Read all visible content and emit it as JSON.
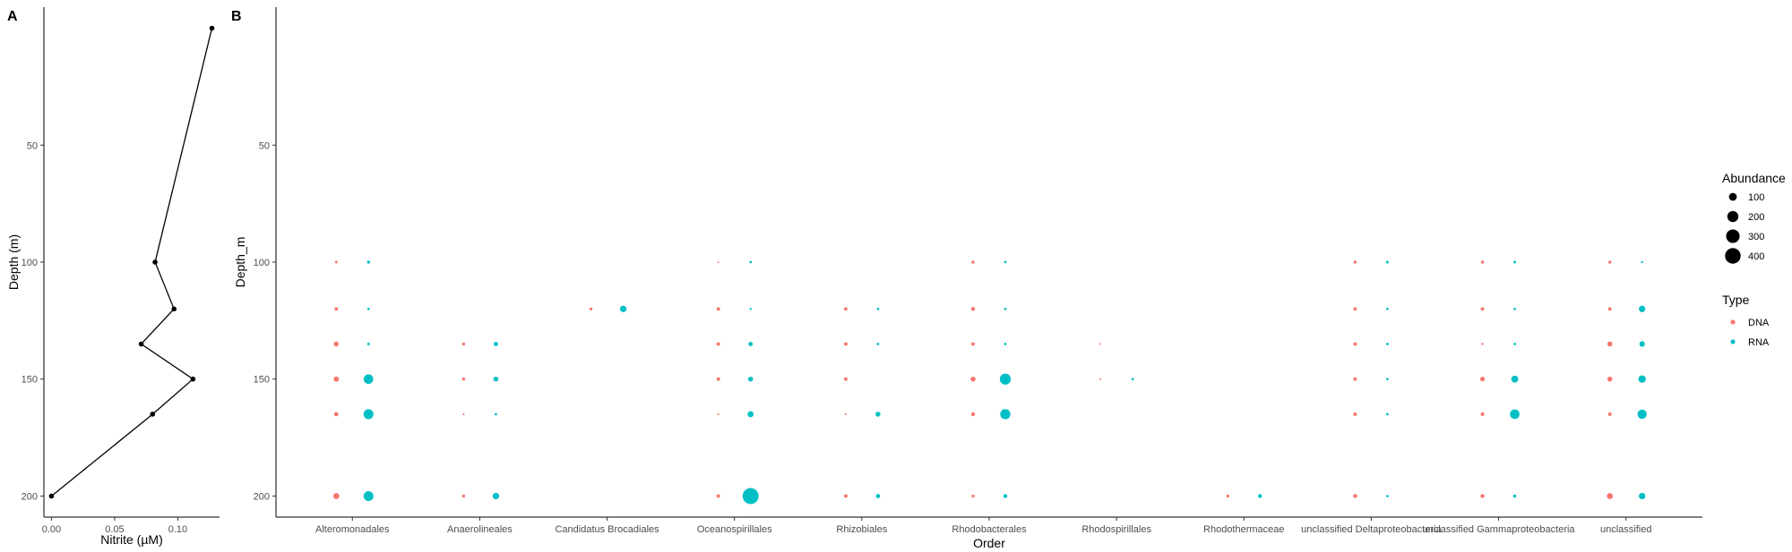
{
  "chart_data": [
    {
      "panel": "A",
      "type": "line",
      "xlabel": "Nitrite (µM)",
      "ylabel": "Depth (m)",
      "xlim": [
        -0.006,
        0.133
      ],
      "ylim": [
        209,
        -9
      ],
      "xticks": [
        0.0,
        0.05,
        0.1
      ],
      "xtick_labels": [
        "0.00",
        "0.05",
        "0.10"
      ],
      "yticks": [
        50,
        100,
        150,
        200
      ],
      "ytick_labels": [
        "50",
        "100",
        "150",
        "200"
      ],
      "grid": false,
      "points": [
        {
          "x": 0.127,
          "y": 0
        },
        {
          "x": 0.082,
          "y": 100
        },
        {
          "x": 0.097,
          "y": 120
        },
        {
          "x": 0.071,
          "y": 135
        },
        {
          "x": 0.112,
          "y": 150
        },
        {
          "x": 0.08,
          "y": 165
        },
        {
          "x": 0.0,
          "y": 200
        }
      ],
      "color": "#000000"
    },
    {
      "panel": "B",
      "type": "scatter",
      "xlabel": "Order",
      "ylabel": "Depth_m",
      "ylim": [
        209,
        -9
      ],
      "yticks": [
        50,
        100,
        150,
        200
      ],
      "ytick_labels": [
        "50",
        "100",
        "150",
        "200"
      ],
      "grid": false,
      "categories": [
        "Alteromonadales",
        "Anaerolineales",
        "Candidatus Brocadiales",
        "Oceanospirillales",
        "Rhizobiales",
        "Rhodobacterales",
        "Rhodospirillales",
        "Rhodothermaceae",
        "unclassified Deltaproteobacteria",
        "unclassified Gammaproteobacteria",
        "unclassified"
      ],
      "series": [
        {
          "name": "DNA",
          "color": "#F8766D",
          "points": [
            {
              "order": "Alteromonadales",
              "depth": 100,
              "abundance": 12
            },
            {
              "order": "Alteromonadales",
              "depth": 120,
              "abundance": 20
            },
            {
              "order": "Alteromonadales",
              "depth": 135,
              "abundance": 40
            },
            {
              "order": "Alteromonadales",
              "depth": 150,
              "abundance": 45
            },
            {
              "order": "Alteromonadales",
              "depth": 165,
              "abundance": 30
            },
            {
              "order": "Alteromonadales",
              "depth": 200,
              "abundance": 60
            },
            {
              "order": "Anaerolineales",
              "depth": 135,
              "abundance": 15
            },
            {
              "order": "Anaerolineales",
              "depth": 150,
              "abundance": 15
            },
            {
              "order": "Anaerolineales",
              "depth": 165,
              "abundance": 6
            },
            {
              "order": "Anaerolineales",
              "depth": 200,
              "abundance": 15
            },
            {
              "order": "Candidatus Brocadiales",
              "depth": 120,
              "abundance": 15
            },
            {
              "order": "Oceanospirillales",
              "depth": 100,
              "abundance": 5
            },
            {
              "order": "Oceanospirillales",
              "depth": 120,
              "abundance": 20
            },
            {
              "order": "Oceanospirillales",
              "depth": 135,
              "abundance": 20
            },
            {
              "order": "Oceanospirillales",
              "depth": 150,
              "abundance": 20
            },
            {
              "order": "Oceanospirillales",
              "depth": 165,
              "abundance": 6
            },
            {
              "order": "Oceanospirillales",
              "depth": 200,
              "abundance": 20
            },
            {
              "order": "Rhizobiales",
              "depth": 120,
              "abundance": 20
            },
            {
              "order": "Rhizobiales",
              "depth": 135,
              "abundance": 20
            },
            {
              "order": "Rhizobiales",
              "depth": 150,
              "abundance": 20
            },
            {
              "order": "Rhizobiales",
              "depth": 165,
              "abundance": 6
            },
            {
              "order": "Rhizobiales",
              "depth": 200,
              "abundance": 20
            },
            {
              "order": "Rhodobacterales",
              "depth": 100,
              "abundance": 15
            },
            {
              "order": "Rhodobacterales",
              "depth": 120,
              "abundance": 25
            },
            {
              "order": "Rhodobacterales",
              "depth": 135,
              "abundance": 20
            },
            {
              "order": "Rhodobacterales",
              "depth": 150,
              "abundance": 40
            },
            {
              "order": "Rhodobacterales",
              "depth": 165,
              "abundance": 25
            },
            {
              "order": "Rhodobacterales",
              "depth": 200,
              "abundance": 15
            },
            {
              "order": "Rhodospirillales",
              "depth": 135,
              "abundance": 5
            },
            {
              "order": "Rhodospirillales",
              "depth": 150,
              "abundance": 6
            },
            {
              "order": "Rhodothermaceae",
              "depth": 200,
              "abundance": 15
            },
            {
              "order": "unclassified Deltaproteobacteria",
              "depth": 100,
              "abundance": 15
            },
            {
              "order": "unclassified Deltaproteobacteria",
              "depth": 120,
              "abundance": 20
            },
            {
              "order": "unclassified Deltaproteobacteria",
              "depth": 135,
              "abundance": 20
            },
            {
              "order": "unclassified Deltaproteobacteria",
              "depth": 150,
              "abundance": 20
            },
            {
              "order": "unclassified Deltaproteobacteria",
              "depth": 165,
              "abundance": 20
            },
            {
              "order": "unclassified Deltaproteobacteria",
              "depth": 200,
              "abundance": 25
            },
            {
              "order": "unclassified Gammaproteobacteria",
              "depth": 100,
              "abundance": 15
            },
            {
              "order": "unclassified Gammaproteobacteria",
              "depth": 120,
              "abundance": 20
            },
            {
              "order": "unclassified Gammaproteobacteria",
              "depth": 135,
              "abundance": 8
            },
            {
              "order": "unclassified Gammaproteobacteria",
              "depth": 150,
              "abundance": 35
            },
            {
              "order": "unclassified Gammaproteobacteria",
              "depth": 165,
              "abundance": 20
            },
            {
              "order": "unclassified Gammaproteobacteria",
              "depth": 200,
              "abundance": 25
            },
            {
              "order": "unclassified",
              "depth": 100,
              "abundance": 15
            },
            {
              "order": "unclassified",
              "depth": 120,
              "abundance": 20
            },
            {
              "order": "unclassified",
              "depth": 135,
              "abundance": 40
            },
            {
              "order": "unclassified",
              "depth": 150,
              "abundance": 40
            },
            {
              "order": "unclassified",
              "depth": 165,
              "abundance": 20
            },
            {
              "order": "unclassified",
              "depth": 200,
              "abundance": 60
            }
          ]
        },
        {
          "name": "RNA",
          "color": "#00BFC4",
          "points": [
            {
              "order": "Alteromonadales",
              "depth": 100,
              "abundance": 15
            },
            {
              "order": "Alteromonadales",
              "depth": 120,
              "abundance": 10
            },
            {
              "order": "Alteromonadales",
              "depth": 135,
              "abundance": 12
            },
            {
              "order": "Alteromonadales",
              "depth": 150,
              "abundance": 150
            },
            {
              "order": "Alteromonadales",
              "depth": 165,
              "abundance": 160
            },
            {
              "order": "Alteromonadales",
              "depth": 200,
              "abundance": 160
            },
            {
              "order": "Anaerolineales",
              "depth": 135,
              "abundance": 30
            },
            {
              "order": "Anaerolineales",
              "depth": 150,
              "abundance": 40
            },
            {
              "order": "Anaerolineales",
              "depth": 165,
              "abundance": 10
            },
            {
              "order": "Anaerolineales",
              "depth": 200,
              "abundance": 70
            },
            {
              "order": "Candidatus Brocadiales",
              "depth": 120,
              "abundance": 70
            },
            {
              "order": "Oceanospirillales",
              "depth": 100,
              "abundance": 10
            },
            {
              "order": "Oceanospirillales",
              "depth": 120,
              "abundance": 8
            },
            {
              "order": "Oceanospirillales",
              "depth": 135,
              "abundance": 30
            },
            {
              "order": "Oceanospirillales",
              "depth": 150,
              "abundance": 40
            },
            {
              "order": "Oceanospirillales",
              "depth": 165,
              "abundance": 60
            },
            {
              "order": "Oceanospirillales",
              "depth": 200,
              "abundance": 420
            },
            {
              "order": "Rhizobiales",
              "depth": 120,
              "abundance": 10
            },
            {
              "order": "Rhizobiales",
              "depth": 135,
              "abundance": 10
            },
            {
              "order": "Rhizobiales",
              "depth": 165,
              "abundance": 40
            },
            {
              "order": "Rhizobiales",
              "depth": 200,
              "abundance": 30
            },
            {
              "order": "Rhodobacterales",
              "depth": 100,
              "abundance": 10
            },
            {
              "order": "Rhodobacterales",
              "depth": 120,
              "abundance": 10
            },
            {
              "order": "Rhodobacterales",
              "depth": 135,
              "abundance": 10
            },
            {
              "order": "Rhodobacterales",
              "depth": 150,
              "abundance": 200
            },
            {
              "order": "Rhodobacterales",
              "depth": 165,
              "abundance": 170
            },
            {
              "order": "Rhodobacterales",
              "depth": 200,
              "abundance": 25
            },
            {
              "order": "Rhodospirillales",
              "depth": 150,
              "abundance": 10
            },
            {
              "order": "Rhodothermaceae",
              "depth": 200,
              "abundance": 25
            },
            {
              "order": "unclassified Deltaproteobacteria",
              "depth": 100,
              "abundance": 12
            },
            {
              "order": "unclassified Deltaproteobacteria",
              "depth": 120,
              "abundance": 10
            },
            {
              "order": "unclassified Deltaproteobacteria",
              "depth": 135,
              "abundance": 10
            },
            {
              "order": "unclassified Deltaproteobacteria",
              "depth": 150,
              "abundance": 10
            },
            {
              "order": "unclassified Deltaproteobacteria",
              "depth": 165,
              "abundance": 10
            },
            {
              "order": "unclassified Deltaproteobacteria",
              "depth": 200,
              "abundance": 10
            },
            {
              "order": "unclassified Gammaproteobacteria",
              "depth": 100,
              "abundance": 12
            },
            {
              "order": "unclassified Gammaproteobacteria",
              "depth": 120,
              "abundance": 10
            },
            {
              "order": "unclassified Gammaproteobacteria",
              "depth": 135,
              "abundance": 10
            },
            {
              "order": "unclassified Gammaproteobacteria",
              "depth": 150,
              "abundance": 80
            },
            {
              "order": "unclassified Gammaproteobacteria",
              "depth": 165,
              "abundance": 150
            },
            {
              "order": "unclassified Gammaproteobacteria",
              "depth": 200,
              "abundance": 15
            },
            {
              "order": "unclassified",
              "depth": 100,
              "abundance": 8
            },
            {
              "order": "unclassified",
              "depth": 120,
              "abundance": 70
            },
            {
              "order": "unclassified",
              "depth": 135,
              "abundance": 50
            },
            {
              "order": "unclassified",
              "depth": 150,
              "abundance": 90
            },
            {
              "order": "unclassified",
              "depth": 165,
              "abundance": 140
            },
            {
              "order": "unclassified",
              "depth": 200,
              "abundance": 70
            }
          ]
        }
      ],
      "legends": {
        "size": {
          "title": "Abundance",
          "values": [
            100,
            200,
            300,
            400
          ],
          "labels": [
            "100",
            "200",
            "300",
            "400"
          ]
        },
        "color": {
          "title": "Type",
          "labels": [
            "DNA",
            "RNA"
          ],
          "colors": [
            "#F8766D",
            "#00BFC4"
          ]
        },
        "placement": "right"
      }
    }
  ],
  "panel_tags": [
    "A",
    "B"
  ]
}
